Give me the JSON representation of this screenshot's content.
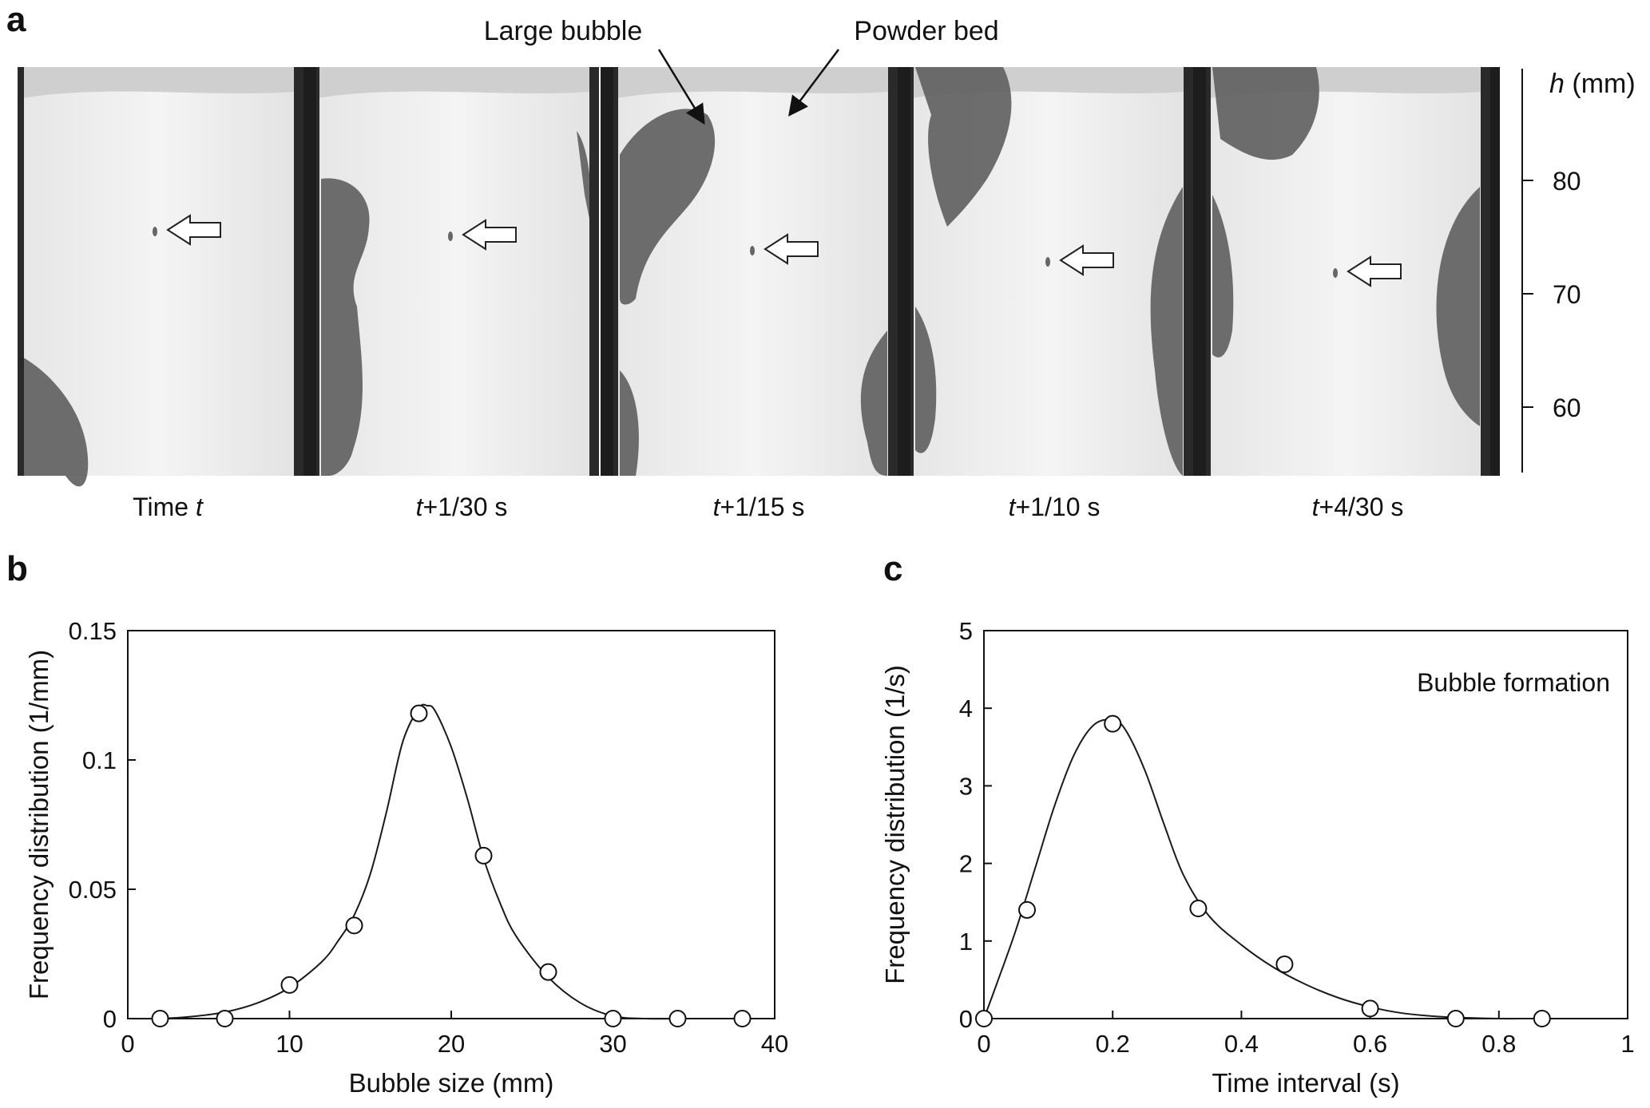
{
  "panels": {
    "a": {
      "label": "a",
      "annotations": [
        "Large bubble",
        "Powder bed"
      ],
      "frame_labels": [
        {
          "pre": "Time ",
          "ital": "t",
          "post": ""
        },
        {
          "pre": "",
          "ital": "t",
          "post": "+1/30 s"
        },
        {
          "pre": "",
          "ital": "t",
          "post": "+1/15 s"
        },
        {
          "pre": "",
          "ital": "t",
          "post": "+1/10 s"
        },
        {
          "pre": "",
          "ital": "t",
          "post": "+4/30 s"
        }
      ],
      "scale": {
        "var": "h",
        "unit": " (mm)",
        "ticks": [
          80,
          70,
          60
        ]
      },
      "colors": {
        "bed": "#f1f1f1",
        "bubble": "#5e5e5e",
        "wall": "#2a2a2a"
      }
    },
    "b": {
      "label": "b"
    },
    "c": {
      "label": "c"
    }
  },
  "chart_data": [
    {
      "type": "scatter",
      "panel": "b",
      "title": "",
      "xlabel": "Bubble size (mm)",
      "ylabel": "Frequency distribution  (1/mm)",
      "xlim": [
        0,
        40
      ],
      "ylim": [
        0,
        0.15
      ],
      "xticks": [
        0,
        10,
        20,
        30,
        40
      ],
      "yticks": [
        0,
        0.05,
        0.1,
        0.15
      ],
      "ytick_labels": [
        "0",
        "0.05",
        "0.1",
        "0.15"
      ],
      "points": {
        "x": [
          2,
          6,
          10,
          14,
          18,
          22,
          26,
          30,
          34,
          38
        ],
        "y": [
          0,
          0,
          0.013,
          0.036,
          0.118,
          0.063,
          0.018,
          0,
          0,
          0
        ]
      },
      "fit_curve": {
        "x": [
          0,
          2,
          4,
          6,
          8,
          10,
          12,
          13,
          14,
          15,
          16,
          17,
          18,
          18.5,
          19,
          20,
          21,
          22,
          23,
          24,
          26,
          28,
          30,
          32,
          34
        ],
        "y": [
          0,
          0,
          0.0008,
          0.0025,
          0.006,
          0.012,
          0.022,
          0.03,
          0.04,
          0.056,
          0.08,
          0.107,
          0.12,
          0.121,
          0.119,
          0.105,
          0.085,
          0.062,
          0.045,
          0.032,
          0.016,
          0.006,
          0.001,
          0,
          0
        ]
      },
      "grid": false,
      "colors": {
        "line": "#1a1a1a",
        "marker_fill": "#ffffff"
      }
    },
    {
      "type": "scatter",
      "panel": "c",
      "title": "",
      "annotation": "Bubble formation",
      "xlabel": "Time interval (s)",
      "ylabel": "Frequency distribution  (1/s)",
      "xlim": [
        0,
        1
      ],
      "ylim": [
        0,
        5
      ],
      "xticks": [
        0,
        0.2,
        0.4,
        0.6,
        0.8,
        1
      ],
      "xtick_labels": [
        "0",
        "0.2",
        "0.4",
        "0.6",
        "0.8",
        "1"
      ],
      "yticks": [
        0,
        1,
        2,
        3,
        4,
        5
      ],
      "points": {
        "x": [
          0,
          0.067,
          0.2,
          0.333,
          0.467,
          0.6,
          0.733,
          0.867
        ],
        "y": [
          0,
          1.4,
          3.8,
          1.42,
          0.7,
          0.13,
          0,
          0
        ]
      },
      "fit_curve": {
        "x": [
          0,
          0.02,
          0.05,
          0.08,
          0.11,
          0.14,
          0.17,
          0.2,
          0.22,
          0.25,
          0.28,
          0.31,
          0.35,
          0.4,
          0.45,
          0.5,
          0.55,
          0.6,
          0.65,
          0.7,
          0.75,
          0.8,
          0.85
        ],
        "y": [
          0,
          0.45,
          1.15,
          1.95,
          2.75,
          3.4,
          3.78,
          3.85,
          3.72,
          3.2,
          2.5,
          1.85,
          1.32,
          0.95,
          0.66,
          0.44,
          0.27,
          0.15,
          0.07,
          0.03,
          0.01,
          0,
          0
        ]
      },
      "grid": false,
      "colors": {
        "line": "#1a1a1a",
        "marker_fill": "#ffffff"
      }
    }
  ]
}
